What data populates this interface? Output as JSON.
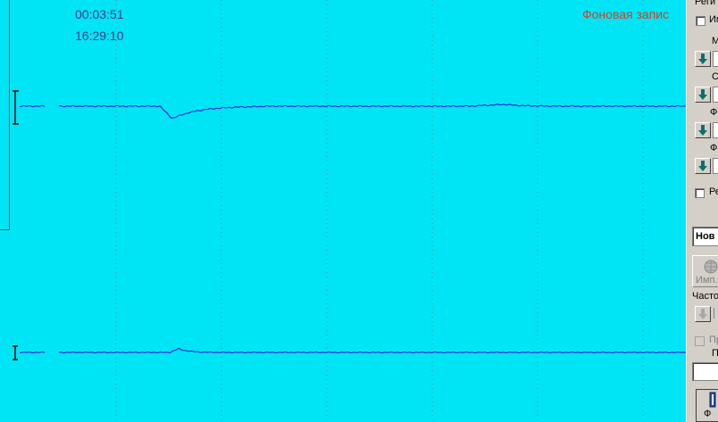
{
  "recording": {
    "elapsed": "00:03:51",
    "clock": "16:29:10",
    "title": "Фоновая запис"
  },
  "colors": {
    "plot_background": "#00e5f6",
    "grid": "#3f8f8f",
    "trace": "#2a2ad8",
    "title_text": "#c8442c",
    "time_text": "#3a3a8a"
  },
  "panel": {
    "group_label": "Реги",
    "checkbox_1_label": "Им",
    "spin_labels": [
      "М",
      "С",
      "Ф",
      "Ф"
    ],
    "checkbox_2_label": "Ре",
    "name_field": "Нов",
    "impulse_button": "Имп.",
    "frequency_label": "Часто",
    "checkbox_3_label": "Пр",
    "field_label": "П",
    "bottom_button": "Ф"
  }
}
